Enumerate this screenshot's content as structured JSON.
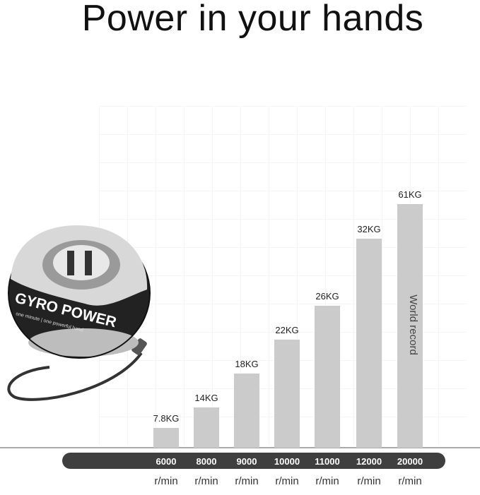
{
  "title": "Power in your hands",
  "product": {
    "brand": "GYRO POWER",
    "tagline": "one minute | one powerful hand"
  },
  "chart_data": {
    "type": "bar",
    "categories": [
      "6000",
      "8000",
      "9000",
      "10000",
      "11000",
      "12000",
      "20000"
    ],
    "category_unit": "r/min",
    "values": [
      7.8,
      14,
      18,
      22,
      26,
      32,
      61
    ],
    "data_labels": [
      "7.8KG",
      "14KG",
      "18KG",
      "22KG",
      "26KG",
      "32KG",
      "61KG"
    ],
    "annotation": "World record",
    "bar_color": "#cbcbcb",
    "axis_band_color": "#3f3f3f",
    "title": "",
    "xlabel": "",
    "ylabel": ""
  }
}
